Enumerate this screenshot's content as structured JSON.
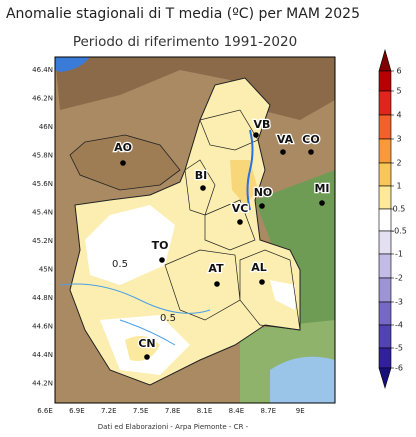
{
  "title": "Anomalie stagionali di T media (ºC) per MAM 2025",
  "subtitle": "Periodo di riferimento 1991-2020",
  "map": {
    "lat_labels": [
      "46.4N",
      "46.2N",
      "46N",
      "45.8N",
      "45.6N",
      "45.4N",
      "45.2N",
      "45N",
      "44.8N",
      "44.6N",
      "44.4N",
      "44.2N"
    ],
    "lon_labels": [
      "6.6E",
      "6.9E",
      "7.2E",
      "7.5E",
      "7.8E",
      "8.1E",
      "8.4E",
      "8.7E",
      "9E"
    ],
    "cities": [
      "VB",
      "VA",
      "CO",
      "BI",
      "NO",
      "MI",
      "VC",
      "AO",
      "TO",
      "AT",
      "AL",
      "CN"
    ],
    "contour_labels": [
      "0.5",
      "0.5"
    ]
  },
  "colorbar": {
    "labels": [
      "6",
      "5",
      "4",
      "3",
      "2",
      "1",
      "0.5",
      "-0.5",
      "-1",
      "-2",
      "-3",
      "-4",
      "-5",
      "-6"
    ],
    "colors": [
      "#800000",
      "#b80000",
      "#e0261c",
      "#f2602e",
      "#f79a3c",
      "#f9c65a",
      "#fde89b",
      "#ffffff",
      "#e4e0f2",
      "#c3bce6",
      "#9d94d6",
      "#7669c4",
      "#5244b0",
      "#30209a",
      "#18107a"
    ]
  },
  "footer": "Dati ed Elaborazioni - Arpa Piemonte - CR -"
}
